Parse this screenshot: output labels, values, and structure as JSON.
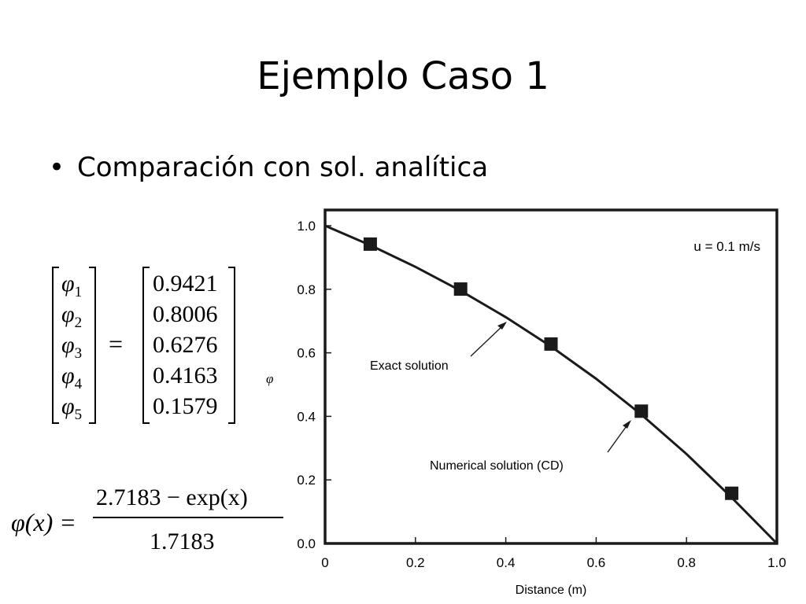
{
  "slide": {
    "title": "Ejemplo Caso 1",
    "bullet": "Comparación con sol. analítica"
  },
  "matrix": {
    "symbol": "φ",
    "subscripts": [
      "1",
      "2",
      "3",
      "4",
      "5"
    ],
    "equals": "=",
    "values": [
      "0.9421",
      "0.8006",
      "0.6276",
      "0.4163",
      "0.1579"
    ]
  },
  "formula": {
    "lhs": "φ(x) =",
    "numerator": "2.7183 − exp(x)",
    "denominator": "1.7183"
  },
  "chart_data": {
    "type": "line",
    "xlabel": "Distance (m)",
    "ylabel": "φ",
    "xlim": [
      0,
      1
    ],
    "ylim": [
      0,
      1
    ],
    "x_ticks": [
      "0",
      "0.2",
      "0.4",
      "0.6",
      "0.8",
      "1.0"
    ],
    "y_ticks": [
      "0.0",
      "0.2",
      "0.4",
      "0.6",
      "0.8",
      "1.0"
    ],
    "grid": false,
    "annotation_velocity": "u = 0.1 m/s",
    "series": [
      {
        "name": "Exact solution",
        "style": "line",
        "x": [
          0,
          0.1,
          0.2,
          0.3,
          0.4,
          0.5,
          0.6,
          0.7,
          0.8,
          0.9,
          1.0
        ],
        "y": [
          1.0,
          0.9387,
          0.8706,
          0.7953,
          0.7121,
          0.62,
          0.5183,
          0.4058,
          0.2815,
          0.1442,
          0.0
        ]
      },
      {
        "name": "Numerical solution (CD)",
        "style": "markers",
        "x": [
          0.1,
          0.3,
          0.5,
          0.7,
          0.9
        ],
        "y": [
          0.9421,
          0.8006,
          0.6276,
          0.4163,
          0.1579
        ]
      }
    ],
    "colors": {
      "line": "#1a1a1a",
      "marker": "#1a1a1a",
      "frame": "#1a1a1a"
    }
  }
}
